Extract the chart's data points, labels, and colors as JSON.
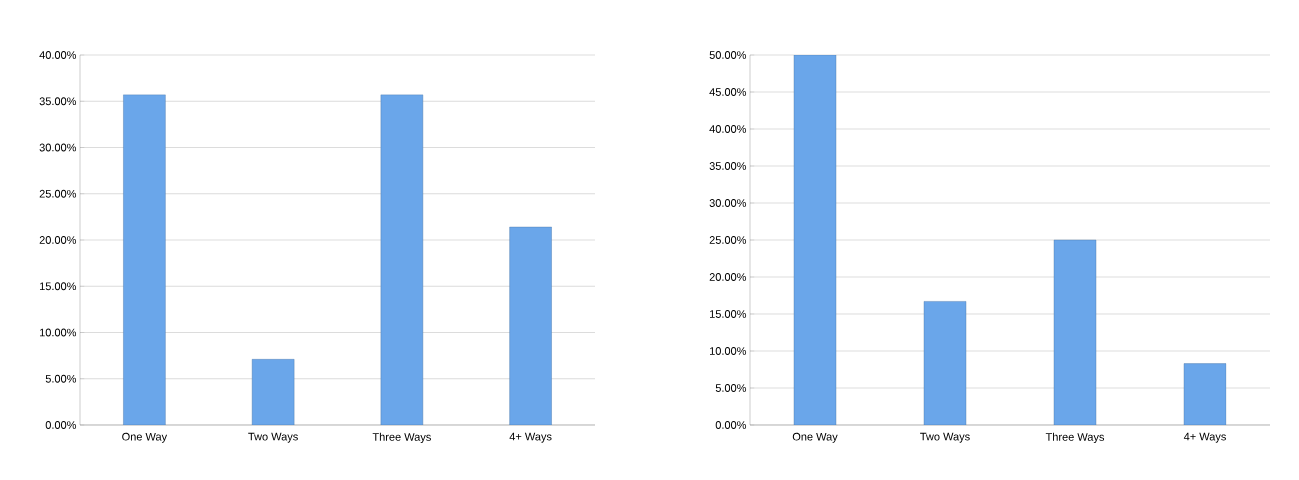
{
  "chart_data": [
    {
      "type": "bar",
      "categories": [
        "One Way",
        "Two Ways",
        "Three Ways",
        "4+ Ways"
      ],
      "values": [
        35.7,
        7.1,
        35.7,
        21.4
      ],
      "color": "#6aa6ea",
      "ylim": [
        0,
        40
      ],
      "yticks": [
        {
          "value": 0,
          "label": "0.00%"
        },
        {
          "value": 5,
          "label": "5.00%"
        },
        {
          "value": 10,
          "label": "10.00%"
        },
        {
          "value": 15,
          "label": "15.00%"
        },
        {
          "value": 20,
          "label": "20.00%"
        },
        {
          "value": 25,
          "label": "25.00%"
        },
        {
          "value": 30,
          "label": "30.00%"
        },
        {
          "value": 35,
          "label": "35.00%"
        },
        {
          "value": 40,
          "label": "40.00%"
        }
      ],
      "grid": "y"
    },
    {
      "type": "bar",
      "categories": [
        "One Way",
        "Two Ways",
        "Three Ways",
        "4+ Ways"
      ],
      "values": [
        50,
        16.7,
        25,
        8.3
      ],
      "color": "#6aa6ea",
      "ylim": [
        0,
        50
      ],
      "yticks": [
        {
          "value": 0,
          "label": "0.00%"
        },
        {
          "value": 5,
          "label": "5.00%"
        },
        {
          "value": 10,
          "label": "10.00%"
        },
        {
          "value": 15,
          "label": "15.00%"
        },
        {
          "value": 20,
          "label": "20.00%"
        },
        {
          "value": 25,
          "label": "25.00%"
        },
        {
          "value": 30,
          "label": "30.00%"
        },
        {
          "value": 35,
          "label": "35.00%"
        },
        {
          "value": 40,
          "label": "40.00%"
        },
        {
          "value": 45,
          "label": "45.00%"
        },
        {
          "value": 50,
          "label": "50.00%"
        }
      ],
      "grid": "y"
    }
  ]
}
